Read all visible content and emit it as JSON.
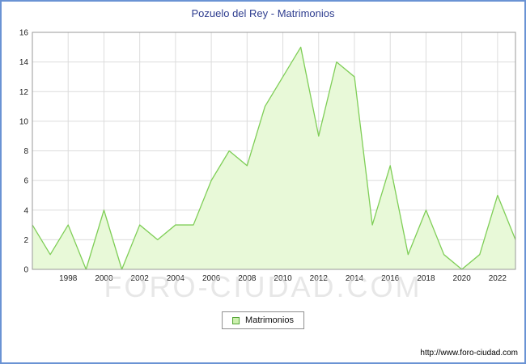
{
  "chart_data": {
    "type": "area",
    "title": "Pozuelo del Rey - Matrimonios",
    "legend": "Matrimonios",
    "x": [
      1996,
      1997,
      1998,
      1999,
      2000,
      2001,
      2002,
      2003,
      2004,
      2005,
      2006,
      2007,
      2008,
      2009,
      2010,
      2011,
      2012,
      2013,
      2014,
      2015,
      2016,
      2017,
      2018,
      2019,
      2020,
      2021,
      2022,
      2023
    ],
    "values": [
      3,
      1,
      3,
      0,
      4,
      0,
      3,
      2,
      3,
      3,
      6,
      8,
      7,
      11,
      13,
      15,
      9,
      14,
      13,
      3,
      7,
      1,
      4,
      1,
      0,
      1,
      5,
      2
    ],
    "x_ticks": [
      1998,
      2000,
      2002,
      2004,
      2006,
      2008,
      2010,
      2012,
      2014,
      2016,
      2018,
      2020,
      2022
    ],
    "y_ticks": [
      0,
      2,
      4,
      6,
      8,
      10,
      12,
      14,
      16
    ],
    "ylim": [
      0,
      16
    ],
    "grid": true,
    "legend_position": "bottom",
    "colors": {
      "area_fill": "#e8f9d8",
      "line": "#7fce57",
      "grid": "#dcdcdc",
      "plot_border": "#999999",
      "title": "#2e3d8f",
      "frame_border": "#6a93d4",
      "legend_swatch_fill": "#ccf0ae",
      "legend_swatch_border": "#55a437"
    }
  },
  "watermark": "FORO-CIUDAD.COM",
  "footer": {
    "url": "http://www.foro-ciudad.com"
  }
}
